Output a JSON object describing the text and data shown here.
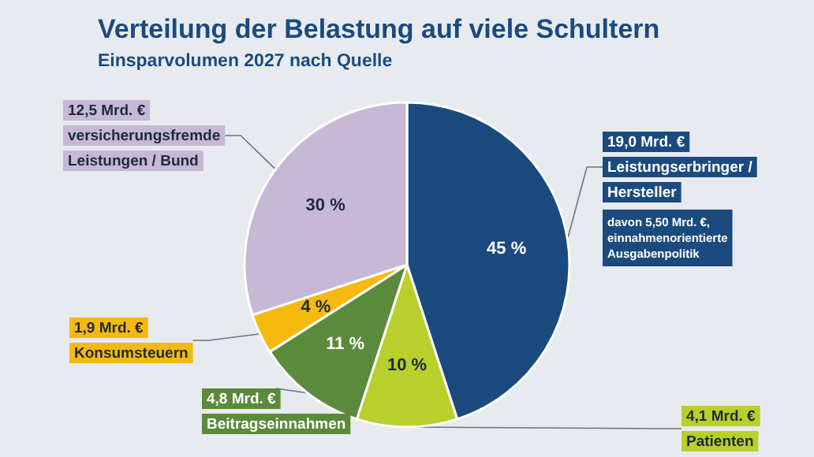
{
  "chart_data": {
    "type": "pie",
    "title": "Verteilung der Belastung auf viele Schultern",
    "subtitle": "Einsparvolumen 2027 nach Quelle",
    "categories": [
      "19,0 Mrd. €\nLeistungserbringer /\nHersteller",
      "4,1 Mrd. €\nPatienten",
      "4,8 Mrd. €\nBeitragseinnahmen",
      "1,9 Mrd. €\nKonsumsteuern",
      "12,5 Mrd. €\nversicherungsfremde\nLeistungen / Bund"
    ],
    "values": [
      45,
      10,
      11,
      4,
      30
    ],
    "value_labels": [
      "45 %",
      "10 %",
      "11 %",
      "4 %",
      "30 %"
    ],
    "colors": [
      "#1b4a7f",
      "#b9cf2b",
      "#5a8a3b",
      "#f6b90d",
      "#c7b8d5"
    ],
    "annotations": [
      "davon 5,50 Mrd. €,\neinnahmenorientierte\nAusgabenpolitik"
    ],
    "legend": false
  }
}
